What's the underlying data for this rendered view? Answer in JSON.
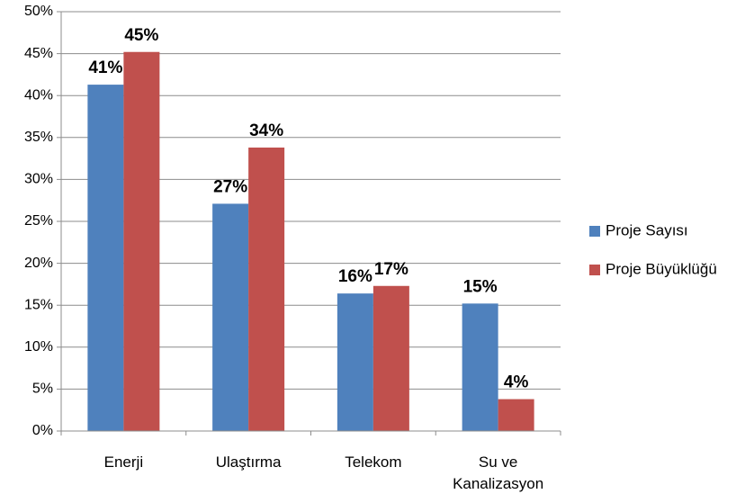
{
  "chart_data": {
    "type": "bar",
    "categories": [
      "Enerji",
      "Ulaştırma",
      "Telekom",
      "Su ve\nKanalizasyon"
    ],
    "series": [
      {
        "name": "Proje Sayısı",
        "color": "#4f81bd",
        "values": [
          41.3,
          27.1,
          16.4,
          15.2
        ],
        "value_labels": [
          "41%",
          "27%",
          "16%",
          "15%"
        ]
      },
      {
        "name": "Proje Büyüklüğü",
        "color": "#c0504d",
        "values": [
          45.2,
          33.8,
          17.3,
          3.8
        ],
        "value_labels": [
          "45%",
          "34%",
          "17%",
          "4%"
        ]
      }
    ],
    "ylim": [
      0,
      50
    ],
    "yticks": [
      {
        "value": 0,
        "label": "0%"
      },
      {
        "value": 5,
        "label": "5%"
      },
      {
        "value": 10,
        "label": "10%"
      },
      {
        "value": 15,
        "label": "15%"
      },
      {
        "value": 20,
        "label": "20%"
      },
      {
        "value": 25,
        "label": "25%"
      },
      {
        "value": 30,
        "label": "30%"
      },
      {
        "value": 35,
        "label": "35%"
      },
      {
        "value": 40,
        "label": "40%"
      },
      {
        "value": 45,
        "label": "45%"
      },
      {
        "value": 50,
        "label": "50%"
      }
    ],
    "grid": true,
    "legend": "right"
  }
}
